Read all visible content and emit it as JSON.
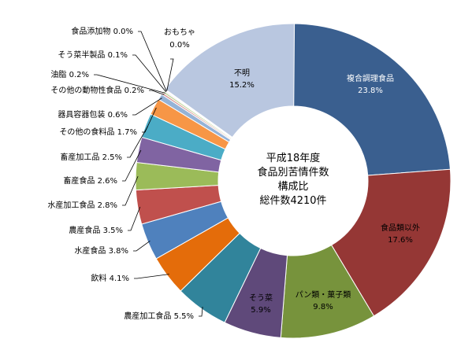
{
  "chart_data": {
    "type": "pie",
    "title_lines": [
      "平成18年度",
      "食品別苦情件数",
      "構成比",
      "総件数4210件"
    ],
    "slices": [
      {
        "label": "複合調理食品",
        "value": 23.8,
        "pct": "23.8%",
        "color": "#3a5f8f"
      },
      {
        "label": "食品類以外",
        "value": 17.6,
        "pct": "17.6%",
        "color": "#953735"
      },
      {
        "label": "パン類・菓子類",
        "value": 9.8,
        "pct": "9.8%",
        "color": "#77933c"
      },
      {
        "label": "そう菜",
        "value": 5.9,
        "pct": "5.9%",
        "color": "#5f497a"
      },
      {
        "label": "農産加工食品",
        "value": 5.5,
        "pct": "5.5%",
        "color": "#31849b"
      },
      {
        "label": "飲料",
        "value": 4.1,
        "pct": "4.1%",
        "color": "#e46c0a"
      },
      {
        "label": "水産食品",
        "value": 3.8,
        "pct": "3.8%",
        "color": "#4f81bd"
      },
      {
        "label": "農産食品",
        "value": 3.5,
        "pct": "3.5%",
        "color": "#c0504d"
      },
      {
        "label": "水産加工食品",
        "value": 2.8,
        "pct": "2.8%",
        "color": "#9bbb59"
      },
      {
        "label": "畜産食品",
        "value": 2.6,
        "pct": "2.6%",
        "color": "#8064a2"
      },
      {
        "label": "畜産加工品",
        "value": 2.5,
        "pct": "2.5%",
        "color": "#4bacc6"
      },
      {
        "label": "その他の食料品",
        "value": 1.7,
        "pct": "1.7%",
        "color": "#f79646"
      },
      {
        "label": "器具容器包装",
        "value": 0.6,
        "pct": "0.6%",
        "color": "#95b3d7"
      },
      {
        "label": "その他の動物性食品",
        "value": 0.2,
        "pct": "0.2%",
        "color": "#d99694"
      },
      {
        "label": "油脂",
        "value": 0.2,
        "pct": "0.2%",
        "color": "#c3d69b"
      },
      {
        "label": "そう菜半製品",
        "value": 0.1,
        "pct": "0.1%",
        "color": "#b3a2c7"
      },
      {
        "label": "食品添加物",
        "value": 0.0,
        "pct": "0.0%",
        "color": "#93cddd"
      },
      {
        "label": "おもちゃ",
        "value": 0.0,
        "pct": "0.0%",
        "color": "#fac090"
      },
      {
        "label": "不明",
        "value": 15.2,
        "pct": "15.2%",
        "color": "#b9c7e0"
      }
    ]
  }
}
